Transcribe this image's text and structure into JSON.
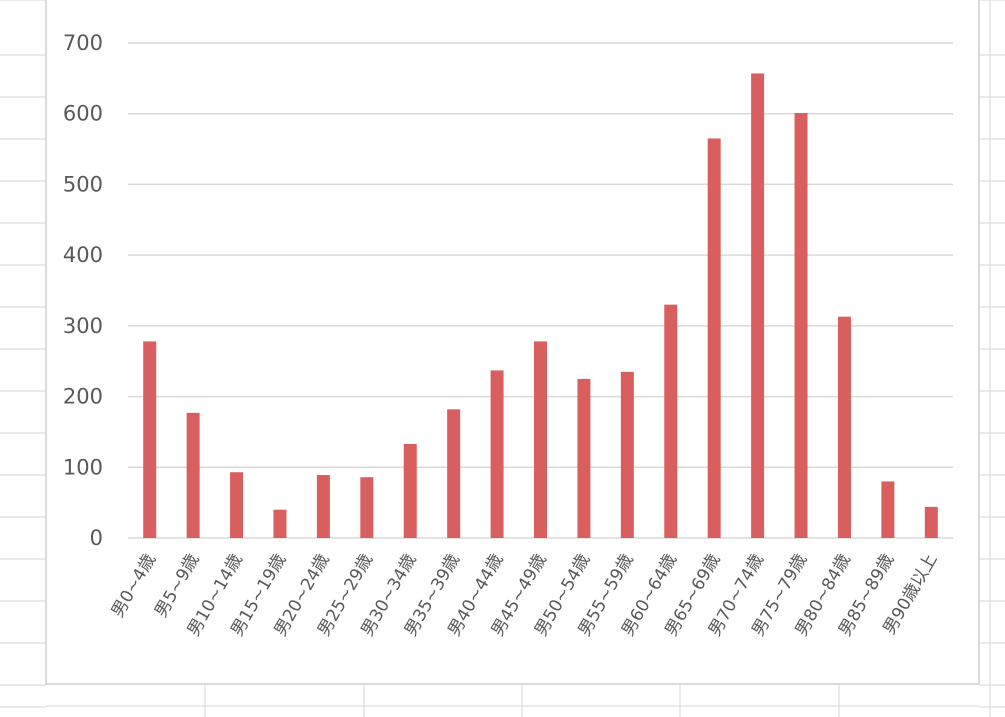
{
  "colors": {
    "bar": "#d95f5f"
  },
  "chart_data": {
    "type": "bar",
    "title": "",
    "xlabel": "",
    "ylabel": "",
    "ylim": [
      0,
      700
    ],
    "yticks": [
      0,
      100,
      200,
      300,
      400,
      500,
      600,
      700
    ],
    "grid": true,
    "legend": "none",
    "categories": [
      "男0~4歳",
      "男5~9歳",
      "男10~14歳",
      "男15~19歳",
      "男20~24歳",
      "男25~29歳",
      "男30~34歳",
      "男35~39歳",
      "男40~44歳",
      "男45~49歳",
      "男50~54歳",
      "男55~59歳",
      "男60~64歳",
      "男65~69歳",
      "男70~74歳",
      "男75~79歳",
      "男80~84歳",
      "男85~89歳",
      "男90歳以上"
    ],
    "values": [
      278,
      177,
      93,
      40,
      89,
      86,
      133,
      182,
      237,
      278,
      225,
      235,
      330,
      565,
      657,
      601,
      313,
      80,
      44
    ]
  }
}
